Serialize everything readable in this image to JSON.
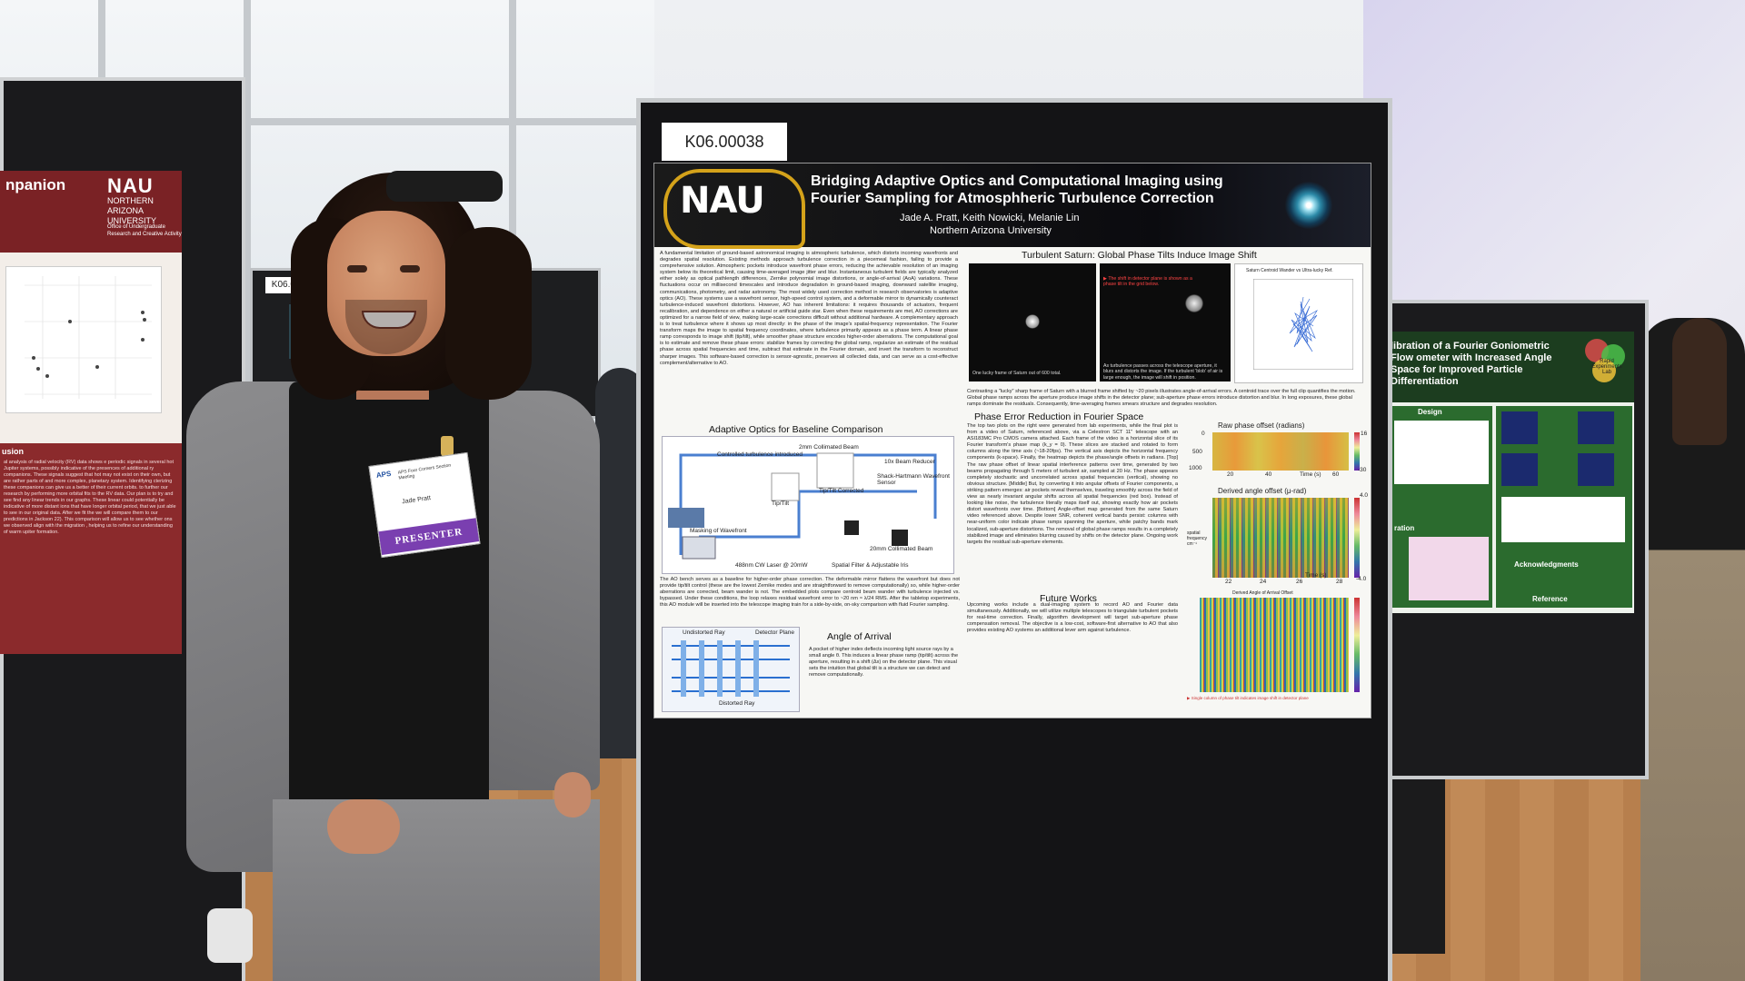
{
  "left_poster": {
    "title_fragment": "npanion",
    "logo": "NAU",
    "logo_sub": "NORTHERN ARIZONA UNIVERSITY",
    "office": "Office of Undergraduate Research and Creative Activity",
    "section_title": "usion",
    "body": "al analysis of radial velocity (RV) data shows e periodic signals in several hot Jupiter systems, possibly indicative of the presences of additional ry companions. These signals suggest that hot may not exist on their own, but are rather parts of and more complex, planetary system. Identifying cterizing these companions can give us a better of their current orbits. to further our research by performing more orbital fits to the RV data. Our plan is to try and see find any linear trends in our graphs. These linear could potentially be indicative of more distant ions that have longer orbital period, that we just able to see in our original data. After we fit the we will compare them to our predictions in Jackson 22). This comparison will allow us to see whether ons we observed align with the migration , helping us to refine our understanding of warm upiter formation."
  },
  "mid_tag": "K06.00054",
  "right_poster": {
    "title": "libration of a Fourier Goniometric Flow ometer with Increased Angle Space for Improved Particle Differentiation",
    "logo_text": "Rapid Experiments Lab",
    "design_label": "Design",
    "ack_label": "Acknowledgments",
    "ref_label": "Reference",
    "iteration_label": "ration"
  },
  "main": {
    "tag": "K06.00038",
    "logo": "NAU",
    "title": "Bridging Adaptive Optics and Computational Imaging using Fourier Sampling for Atmosphheric Turbulence Correction",
    "authors": "Jade A. Pratt, Keith Nowicki, Melanie Lin",
    "university": "Northern Arizona University",
    "intro": "A fundamental limitation of ground-based astronomical imaging is atmospheric turbulence, which distorts incoming wavefronts and degrades spatial resolution. Existing methods approach turbulence correction in a piecemeal fashion, failing to provide a comprehensive solution. Atmospheric pockets introduce wavefront phase errors, reducing the achievable resolution of an imaging system below its theoretical limit, causing time-averaged image jitter and blur. Instantaneous turbulent fields are typically analyzed either solely as optical pathlength differences, Zernike polynomial image distortions, or angle-of-arrival (AoA) variations. These fluctuations occur on millisecond timescales and introduce degradation in ground-based imaging, downward satellite imaging, communications, photometry, and radar astronomy. The most widely used correction method in research observatories is adaptive optics (AO). These systems use a wavefront sensor, high-speed control system, and a deformable mirror to dynamically counteract turbulence-induced wavefront distortions. However, AO has inherent limitations: it requires thousands of actuators, frequent recalibration, and dependence on either a natural or artificial guide star. Even when these requirements are met, AO corrections are optimized for a narrow field of view, making large-scale corrections difficult without additional hardware. A complementary approach is to treat turbulence where it shows up most directly: in the phase of the image's spatial-frequency representation. The Fourier transform maps the image to spatial frequency coordinates, where turbulence primarily appears as a phase term. A linear phase ramp corresponds to image shift (tip/tilt), while smoother phase structure encodes higher-order aberrations. The computational goal is to estimate and remove these phase errors: stabilize frames by correcting the global ramp, regularize an estimate of the residual phase across spatial frequencies and time, subtract that estimate in the Fourier domain, and invert the transform to reconstruct sharper images. This software-based correction is sensor-agnostic, preserves all collected data, and can serve as a cost-effective complement/alternative to AO.",
    "ao_heading": "Adaptive Optics for Baseline Comparison",
    "ao_fig_labels": [
      "Controlled turbulence introduced",
      "2mm Collimated Beam",
      "Tip/Tilt",
      "Tip/Tilt Corrected",
      "Shack-Hartmann Wavefront Sensor",
      "10x Beam Reducer",
      "No Turbulence",
      "Turbulence",
      "CMOS Cam 1",
      "CMOS Cam 2",
      "Beam Splitter",
      "Unpolarized BS",
      "488nm CW Laser @ 20mW",
      "ND Filter (OD1)",
      "Spatial Filter & Adjustable Iris",
      "20mm Collimated Beam",
      "AO-Actuator Deformable Mirror",
      "Masking of Wavefront"
    ],
    "ao_text": "The AO bench serves as a baseline for higher-order phase correction. The deformable mirror flattens the wavefront but does not provide tip/tilt control (these are the lowest Zernike modes and are straightforward to remove computationally) so, while higher-order aberrations are corrected, beam wander is not. The embedded plots compare centroid beam wander with turbulence injected vs. bypassed. Under these conditions, the loop relaxes residual wavefront error to ~20 nm ≈ λ/24 RMS. After the tabletop experiments, this AO module will be inserted into the telescope imaging train for a side-by-side, on-sky comparison with fluid Fourier sampling.",
    "aoa_heading": "Angle of Arrival",
    "aoa_fig_labels": [
      "Undistorted Ray",
      "Detector Plane",
      "Image of an AoA System",
      "Distorted Ray",
      "Input Beam"
    ],
    "aoa_text": "A pocket of higher index deflects incoming light source rays by a small angle θ. This induces a linear phase ramp (tip/tilt) across the aperture, resulting in a shift (Δx) on the detector plane. This visual sets the intuition that global tilt is a structure we can detect and remove computationally.",
    "saturn_heading": "Turbulent Saturn: Global Phase Tilts Induce Image Shift",
    "saturn_cap1": "One lucky frame of Saturn out of 600 total.",
    "saturn_cap2_top": "▶ The shift in detector plane is shown as a phase tilt in the grid below.",
    "saturn_cap2": "As turbulence passes across the telescope aperture, it blurs and distorts the image. If the turbulent 'blob' of air is large enough, the image will shift in position.",
    "saturn_plot_title": "Saturn Centroid Wander vs Ultra-lucky Ref.",
    "saturn_text": "Contrasting a \"lucky\" sharp frame of Saturn with a blurred frame shifted by ~20 pixels illustrates angle-of-arrival errors. A centroid trace over the full clip quantifies the motion. Global phase ramps across the aperture produce image shifts in the detector plane; sub-aperture phase errors introduce distortion and blur. In long exposures, these global ramps dominate the residuals. Consequently, time-averaging frames smears structure and degrades resolution.",
    "fourier_heading": "Phase Error Reduction in Fourier Space",
    "fourier_text": "The top two plots on the right were generated from lab experiments, while the final plot is from a video of Saturn, referenced above, via a Celestron SCT 11\" telescope with an ASI183MC Pro CMOS camera attached. Each frame of the video is a horizontal slice of its Fourier transform's phase map (k_y = 0). These slices are stacked and rotated to form columns along the time axis (~18-20fps). The vertical axis depicts the horizontal frequency components (k-space). Finally, the heatmap depicts the phase/angle offsets in radians. [Top] The raw phase offset of linear spatial interference patterns over time, generated by two beams propagating through 5 meters of turbulent air, sampled at 20 Hz. The phase appears completely stochastic and uncorrelated across spatial frequencies (vertical), showing no obvious structure. [Middle] But, by converting it into angular offsets of Fourier components, a striking pattern emerges: air pockets reveal themselves, traveling smoothly across the field of view as nearly invariant angular shifts across all spatial frequencies (red box). Instead of looking like noise, the turbulence literally maps itself out, showing exactly how air pockets distort wavefronts over time. [Bottom] Angle-offset map generated from the same Saturn video referenced above. Despite lower SNR, coherent vertical bands persist: columns with near-uniform color indicate phase ramps spanning the aperture, while patchy bands mark localized, sub-aperture distortions. The removal of global phase ramps results in a completely stabilized image and eliminates blurring caused by shifts on the detector plane. Ongoing work targets the residual sub-aperture elements.",
    "future_heading": "Future Works",
    "future_text": "Upcoming works include a dual-imaging system to record AO and Fourier data simultaneously. Additionally, we will utilize multiple telescopes to triangulate turbulent pockets for real-time correction. Finally, algorithm development will target sub-aperture phase compensation removal. The objective is a low-cost, software-first alternative to AO that also provides existing AO systems an additional lever arm against turbulence.",
    "plot1": {
      "title": "Raw phase offset (radians)",
      "ylabel": "cm⁻¹",
      "xlabel": "Time (s)",
      "yticks": [
        "0",
        "500",
        "1000"
      ],
      "xticks": [
        "20",
        "40",
        "60"
      ],
      "cbar": [
        "16",
        "-30"
      ]
    },
    "plot2": {
      "title": "Derived angle offset (μ-rad)",
      "ylabel": "spatial frequency cm⁻¹",
      "xlabel": "Time (s)",
      "yticks": [
        "0",
        "200",
        "500",
        "1000"
      ],
      "xticks": [
        "22",
        "24",
        "26",
        "28"
      ],
      "cbar": [
        "4.0",
        "-4.0"
      ]
    },
    "plot3": {
      "title": "Derived Angle of Arrival Offset",
      "note": "▶ Single column of phase tilt indicates image shift in detector plane"
    }
  },
  "person": {
    "badge_org": "APS",
    "badge_event": "APS Four Corners Section Meeting",
    "badge_name": "Jade Pratt",
    "badge_ribbon": "PRESENTER"
  }
}
